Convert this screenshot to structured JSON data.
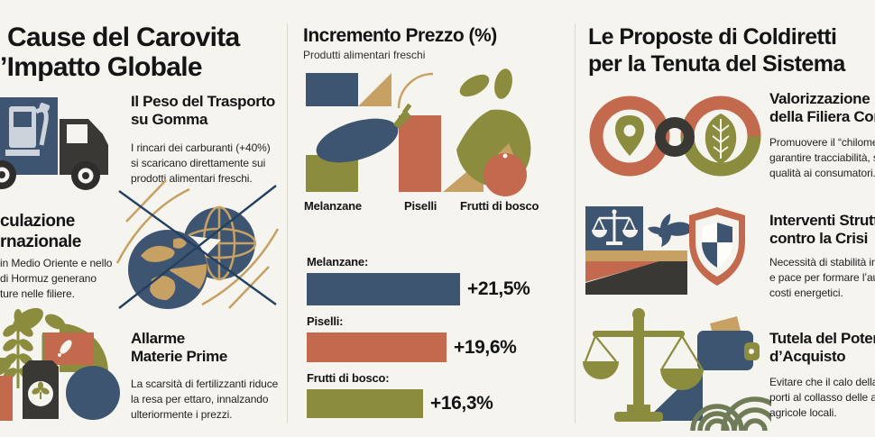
{
  "palette": {
    "navy": "#3e5571",
    "terracotta": "#c2694e",
    "olive": "#8b8c3e",
    "tan": "#c7a164",
    "charcoal": "#3a3835",
    "field_green": "#6f7c57",
    "background": "#f6f4ee",
    "ink": "#141414"
  },
  "left_column": {
    "title_line1": "Cause del Carovita",
    "title_line2": "’Impatto Globale",
    "transport": {
      "heading_line1": "Il Peso del Trasporto",
      "heading_line2": "su Gomma",
      "body_line1": "I rincari dei carburanti (+40%)",
      "body_line2": "si scaricano direttamente sui",
      "body_line3": "prodotti alimentari freschi."
    },
    "speculation": {
      "heading_line1": "culazione",
      "heading_line2": "rnazionale",
      "body_line1": "in Medio Oriente e nello",
      "body_line2": "di Hormuz generano",
      "body_line3": "ture nelle filiere."
    },
    "commodities": {
      "heading_line1": "Allarme",
      "heading_line2": "Materie Prime",
      "body_line1": "La scarsità di fertilizzanti riduce",
      "body_line2": "la resa per ettaro, innalzando",
      "body_line3": "ulteriormente i prezzi."
    }
  },
  "middle_column": {
    "title": "Incremento Prezzo (%)",
    "subtitle": "Produtti alimentari freschi",
    "illustration_labels": {
      "melanzane": "Melanzane",
      "piselli": "Piselli",
      "frutti": "Frutti di bosco"
    }
  },
  "chart_data": {
    "type": "bar",
    "orientation": "horizontal",
    "title": "Incremento Prezzo (%)",
    "subtitle": "Produtti alimentari freschi",
    "categories": [
      "Melanzane:",
      "Piselli:",
      "Frutti di bosco:"
    ],
    "values": [
      21.5,
      19.6,
      16.3
    ],
    "value_labels": [
      "+21,5%",
      "+19,6%",
      "+16,3%"
    ],
    "bar_colors": [
      "#3e5571",
      "#c2694e",
      "#8b8c3e"
    ],
    "xlim": [
      0,
      24
    ],
    "grid": false,
    "legend": false
  },
  "right_column": {
    "title_line1": "Le Proposte di Coldiretti",
    "title_line2": "per la Tenuta del Sistema",
    "filiera": {
      "heading_line1": "Valorizzazione",
      "heading_line2": "della Filiera Cor",
      "body_line1": "Promuovere il “chilometro",
      "body_line2": "garantire tracciabilità, salu",
      "body_line3": "qualità ai consumatori."
    },
    "interventi": {
      "heading_line1": "Interventi Strutt",
      "heading_line2": "contro la Crisi",
      "body_line1": "Necessità di stabilità intern",
      "body_line2": "e pace per formare l’aume",
      "body_line3": "costi energetici."
    },
    "tutela": {
      "heading_line1": "Tutela del Poter",
      "heading_line2": "d’Acquisto",
      "body_line1": "Evitare che il calo della dom",
      "body_line2": "porti al collasso delle azien",
      "body_line3": "agricole locali."
    }
  },
  "icons": {
    "left": [
      "fuel-truck-icon",
      "globes-supply-chain-icon",
      "crops-fertilizer-collage"
    ],
    "middle": [
      "produce-geometric-collage"
    ],
    "right": [
      "supply-chain-rings-icon",
      "justice-dove-shield-icon",
      "scales-wallet-field-icon"
    ]
  }
}
